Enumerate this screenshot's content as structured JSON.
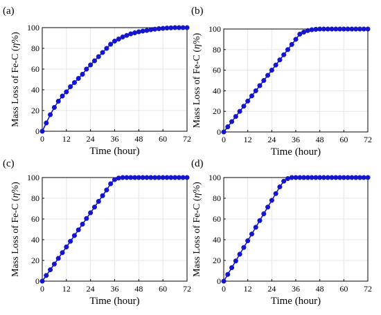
{
  "chart_data": [
    {
      "panel_label": "(a)",
      "type": "line",
      "xlabel": "Time (hour)",
      "ylabel_main": "Mass Loss of Fe-C (",
      "ylabel_sym": "η",
      "ylabel_unit": "%)",
      "xticks": [
        "0",
        "12",
        "24",
        "36",
        "48",
        "60",
        "72"
      ],
      "yticks": [
        "0",
        "20",
        "40",
        "60",
        "80",
        "100"
      ],
      "xlim": [
        0,
        72
      ],
      "ylim": [
        0,
        100
      ],
      "grid": true,
      "color": "#1515cc",
      "x": [
        0,
        2,
        4,
        6,
        8,
        10,
        12,
        14,
        16,
        18,
        20,
        22,
        24,
        26,
        28,
        30,
        32,
        34,
        36,
        38,
        40,
        42,
        44,
        46,
        48,
        50,
        52,
        54,
        56,
        58,
        60,
        62,
        64,
        66,
        68,
        70,
        72
      ],
      "y": [
        0,
        8,
        16,
        23,
        29,
        34,
        38,
        43,
        47,
        51,
        55,
        60,
        64,
        68,
        72,
        76,
        80,
        84,
        87,
        89,
        91,
        92.5,
        94,
        95,
        96,
        96.7,
        97.3,
        98,
        98.5,
        99,
        99.3,
        99.6,
        99.8,
        100,
        100,
        100,
        100
      ]
    },
    {
      "panel_label": "(b)",
      "type": "line",
      "xlabel": "Time (hour)",
      "ylabel_main": "Mass Loss of Fe-C (",
      "ylabel_sym": "η",
      "ylabel_unit": "%)",
      "xticks": [
        "0",
        "12",
        "24",
        "36",
        "48",
        "60",
        "72"
      ],
      "yticks": [
        "0",
        "20",
        "40",
        "60",
        "80",
        "100"
      ],
      "xlim": [
        0,
        72
      ],
      "ylim": [
        0,
        100
      ],
      "grid": true,
      "color": "#1515cc",
      "x": [
        0,
        2,
        4,
        6,
        8,
        10,
        12,
        14,
        16,
        18,
        20,
        22,
        24,
        26,
        28,
        30,
        32,
        34,
        36,
        38,
        40,
        42,
        44,
        46,
        48,
        50,
        52,
        54,
        56,
        58,
        60,
        62,
        64,
        66,
        68,
        70,
        72
      ],
      "y": [
        0,
        5,
        10,
        15,
        20,
        25,
        30,
        35,
        40,
        45,
        50,
        55,
        60,
        65,
        70,
        75,
        80,
        85,
        90,
        95,
        97,
        98.5,
        99.3,
        99.7,
        100,
        100,
        100,
        100,
        100,
        100,
        100,
        100,
        100,
        100,
        100,
        100,
        100
      ]
    },
    {
      "panel_label": "(c)",
      "type": "line",
      "xlabel": "Time (hour)",
      "ylabel_main": "Mass Loss of Fe-C (",
      "ylabel_sym": "η",
      "ylabel_unit": "%)",
      "xticks": [
        "0",
        "12",
        "24",
        "36",
        "48",
        "60",
        "72"
      ],
      "yticks": [
        "0",
        "20",
        "40",
        "60",
        "80",
        "100"
      ],
      "xlim": [
        0,
        72
      ],
      "ylim": [
        0,
        100
      ],
      "grid": true,
      "color": "#1515cc",
      "x": [
        0,
        2,
        4,
        6,
        8,
        10,
        12,
        14,
        16,
        18,
        20,
        22,
        24,
        26,
        28,
        30,
        32,
        34,
        36,
        38,
        40,
        42,
        44,
        46,
        48,
        50,
        52,
        54,
        56,
        58,
        60,
        62,
        64,
        66,
        68,
        70,
        72
      ],
      "y": [
        0,
        5.5,
        11,
        16.5,
        22,
        27.5,
        33,
        38.5,
        44,
        49.5,
        55,
        60.5,
        66,
        71.5,
        77,
        82.5,
        88,
        94,
        98,
        99.5,
        100,
        100,
        100,
        100,
        100,
        100,
        100,
        100,
        100,
        100,
        100,
        100,
        100,
        100,
        100,
        100,
        100
      ]
    },
    {
      "panel_label": "(d)",
      "type": "line",
      "xlabel": "Time (hour)",
      "ylabel_main": "Mass Loss of Fe-C (",
      "ylabel_sym": "η",
      "ylabel_unit": "%)",
      "xticks": [
        "0",
        "12",
        "24",
        "36",
        "48",
        "60",
        "72"
      ],
      "yticks": [
        "0",
        "20",
        "40",
        "60",
        "80",
        "100"
      ],
      "xlim": [
        0,
        72
      ],
      "ylim": [
        0,
        100
      ],
      "grid": true,
      "color": "#1515cc",
      "x": [
        0,
        2,
        4,
        6,
        8,
        10,
        12,
        14,
        16,
        18,
        20,
        22,
        24,
        26,
        28,
        30,
        32,
        34,
        36,
        38,
        40,
        42,
        44,
        46,
        48,
        50,
        52,
        54,
        56,
        58,
        60,
        62,
        64,
        66,
        68,
        70,
        72
      ],
      "y": [
        0,
        6.5,
        13,
        19.5,
        26,
        32.5,
        39,
        45.5,
        52,
        58.5,
        65,
        71.5,
        78,
        84.5,
        91,
        96.5,
        99,
        100,
        100,
        100,
        100,
        100,
        100,
        100,
        100,
        100,
        100,
        100,
        100,
        100,
        100,
        100,
        100,
        100,
        100,
        100,
        100
      ]
    }
  ]
}
